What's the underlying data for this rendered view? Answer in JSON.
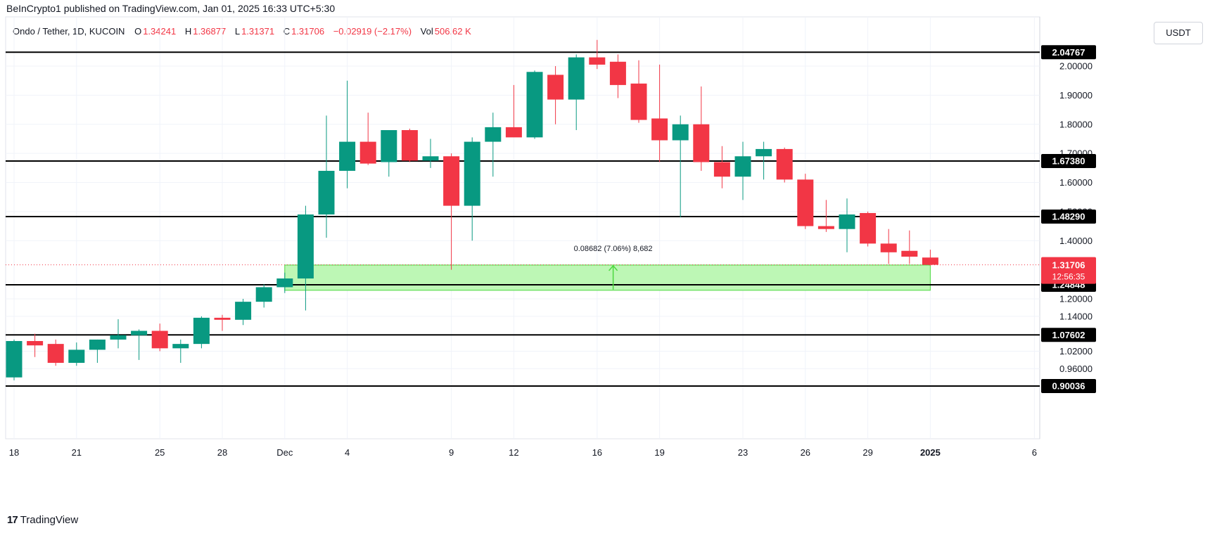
{
  "header": {
    "publisher": "BeInCrypto1 published on TradingView.com, Jan 01, 2025 16:33 UTC+5:30"
  },
  "legend": {
    "symbol": "Ondo / Tether, 1D, KUCOIN",
    "open_label": "O",
    "open": "1.34241",
    "high_label": "H",
    "high": "1.36877",
    "low_label": "L",
    "low": "1.31371",
    "close_label": "C",
    "close": "1.31706",
    "change": "−0.02919 (−2.17%)",
    "vol_label": "Vol",
    "vol": "506.62 K"
  },
  "currency_button": "USDT",
  "branding": {
    "logo_text": "TradingView",
    "logo_mark": "17"
  },
  "colors": {
    "up": "#089981",
    "down": "#f23645",
    "zone_fill": "#bdf7b5",
    "zone_border": "#4cd93f",
    "level_line": "#000000"
  },
  "chart_data": {
    "type": "candlestick",
    "title": "Ondo / Tether, 1D, KUCOIN",
    "ylim": [
      0.9,
      2.07
    ],
    "y_ticks": [
      "2.00000",
      "1.90000",
      "1.80000",
      "1.70000",
      "1.60000",
      "1.50000",
      "1.40000",
      "1.20000",
      "1.14000",
      "1.02000",
      "0.96000",
      "0.90000"
    ],
    "x_ticks": [
      {
        "index": 0,
        "label": "18"
      },
      {
        "index": 3,
        "label": "21"
      },
      {
        "index": 7,
        "label": "25"
      },
      {
        "index": 10,
        "label": "28"
      },
      {
        "index": 13,
        "label": "Dec"
      },
      {
        "index": 16,
        "label": "4"
      },
      {
        "index": 21,
        "label": "9"
      },
      {
        "index": 24,
        "label": "12"
      },
      {
        "index": 28,
        "label": "16"
      },
      {
        "index": 31,
        "label": "19"
      },
      {
        "index": 35,
        "label": "23"
      },
      {
        "index": 38,
        "label": "26"
      },
      {
        "index": 41,
        "label": "29"
      },
      {
        "index": 44,
        "label": "2025"
      },
      {
        "index": 49,
        "label": "6"
      }
    ],
    "candles": [
      {
        "o": 0.93,
        "h": 1.06,
        "l": 0.92,
        "c": 1.055
      },
      {
        "o": 1.055,
        "h": 1.08,
        "l": 1.0,
        "c": 1.04
      },
      {
        "o": 1.045,
        "h": 1.06,
        "l": 0.97,
        "c": 0.98
      },
      {
        "o": 0.98,
        "h": 1.05,
        "l": 0.97,
        "c": 1.025
      },
      {
        "o": 1.025,
        "h": 1.06,
        "l": 0.98,
        "c": 1.06
      },
      {
        "o": 1.06,
        "h": 1.13,
        "l": 1.03,
        "c": 1.075
      },
      {
        "o": 1.075,
        "h": 1.095,
        "l": 0.99,
        "c": 1.09
      },
      {
        "o": 1.09,
        "h": 1.115,
        "l": 1.02,
        "c": 1.03
      },
      {
        "o": 1.03,
        "h": 1.06,
        "l": 0.98,
        "c": 1.045
      },
      {
        "o": 1.045,
        "h": 1.14,
        "l": 1.03,
        "c": 1.135
      },
      {
        "o": 1.135,
        "h": 1.145,
        "l": 1.09,
        "c": 1.128
      },
      {
        "o": 1.128,
        "h": 1.2,
        "l": 1.11,
        "c": 1.19
      },
      {
        "o": 1.19,
        "h": 1.25,
        "l": 1.17,
        "c": 1.24
      },
      {
        "o": 1.24,
        "h": 1.29,
        "l": 1.22,
        "c": 1.27
      },
      {
        "o": 1.27,
        "h": 1.52,
        "l": 1.16,
        "c": 1.49
      },
      {
        "o": 1.49,
        "h": 1.83,
        "l": 1.41,
        "c": 1.64
      },
      {
        "o": 1.64,
        "h": 1.95,
        "l": 1.58,
        "c": 1.74
      },
      {
        "o": 1.74,
        "h": 1.84,
        "l": 1.66,
        "c": 1.665
      },
      {
        "o": 1.67,
        "h": 1.775,
        "l": 1.62,
        "c": 1.78
      },
      {
        "o": 1.78,
        "h": 1.785,
        "l": 1.67,
        "c": 1.675
      },
      {
        "o": 1.675,
        "h": 1.75,
        "l": 1.65,
        "c": 1.69
      },
      {
        "o": 1.69,
        "h": 1.7,
        "l": 1.3,
        "c": 1.52
      },
      {
        "o": 1.52,
        "h": 1.755,
        "l": 1.4,
        "c": 1.74
      },
      {
        "o": 1.74,
        "h": 1.84,
        "l": 1.62,
        "c": 1.79
      },
      {
        "o": 1.79,
        "h": 1.935,
        "l": 1.76,
        "c": 1.755
      },
      {
        "o": 1.755,
        "h": 1.985,
        "l": 1.75,
        "c": 1.98
      },
      {
        "o": 1.97,
        "h": 2.0,
        "l": 1.8,
        "c": 1.885
      },
      {
        "o": 1.885,
        "h": 2.04,
        "l": 1.78,
        "c": 2.03
      },
      {
        "o": 2.03,
        "h": 2.09,
        "l": 1.99,
        "c": 2.005
      },
      {
        "o": 2.015,
        "h": 2.04,
        "l": 1.89,
        "c": 1.935
      },
      {
        "o": 1.94,
        "h": 2.02,
        "l": 1.805,
        "c": 1.815
      },
      {
        "o": 1.82,
        "h": 2.005,
        "l": 1.67,
        "c": 1.745
      },
      {
        "o": 1.745,
        "h": 1.83,
        "l": 1.48,
        "c": 1.8
      },
      {
        "o": 1.8,
        "h": 1.93,
        "l": 1.64,
        "c": 1.67
      },
      {
        "o": 1.67,
        "h": 1.725,
        "l": 1.58,
        "c": 1.62
      },
      {
        "o": 1.62,
        "h": 1.74,
        "l": 1.54,
        "c": 1.69
      },
      {
        "o": 1.69,
        "h": 1.74,
        "l": 1.61,
        "c": 1.715
      },
      {
        "o": 1.715,
        "h": 1.72,
        "l": 1.6,
        "c": 1.61
      },
      {
        "o": 1.61,
        "h": 1.63,
        "l": 1.44,
        "c": 1.45
      },
      {
        "o": 1.45,
        "h": 1.54,
        "l": 1.43,
        "c": 1.44
      },
      {
        "o": 1.44,
        "h": 1.545,
        "l": 1.36,
        "c": 1.49
      },
      {
        "o": 1.495,
        "h": 1.5,
        "l": 1.38,
        "c": 1.39
      },
      {
        "o": 1.39,
        "h": 1.44,
        "l": 1.32,
        "c": 1.36
      },
      {
        "o": 1.365,
        "h": 1.435,
        "l": 1.32,
        "c": 1.345
      },
      {
        "o": 1.342,
        "h": 1.369,
        "l": 1.314,
        "c": 1.317
      }
    ],
    "horizontal_levels": [
      "2.04767",
      "1.67380",
      "1.48290",
      "1.24848",
      "1.07602",
      "0.90036"
    ],
    "current_price": {
      "value": "1.31706",
      "countdown": "12:56:35"
    },
    "range_measure": {
      "label": "0.08682 (7.06%) 8,682",
      "from_index": 13,
      "to_index": 44,
      "low": 1.22939,
      "high": 1.31621
    }
  }
}
